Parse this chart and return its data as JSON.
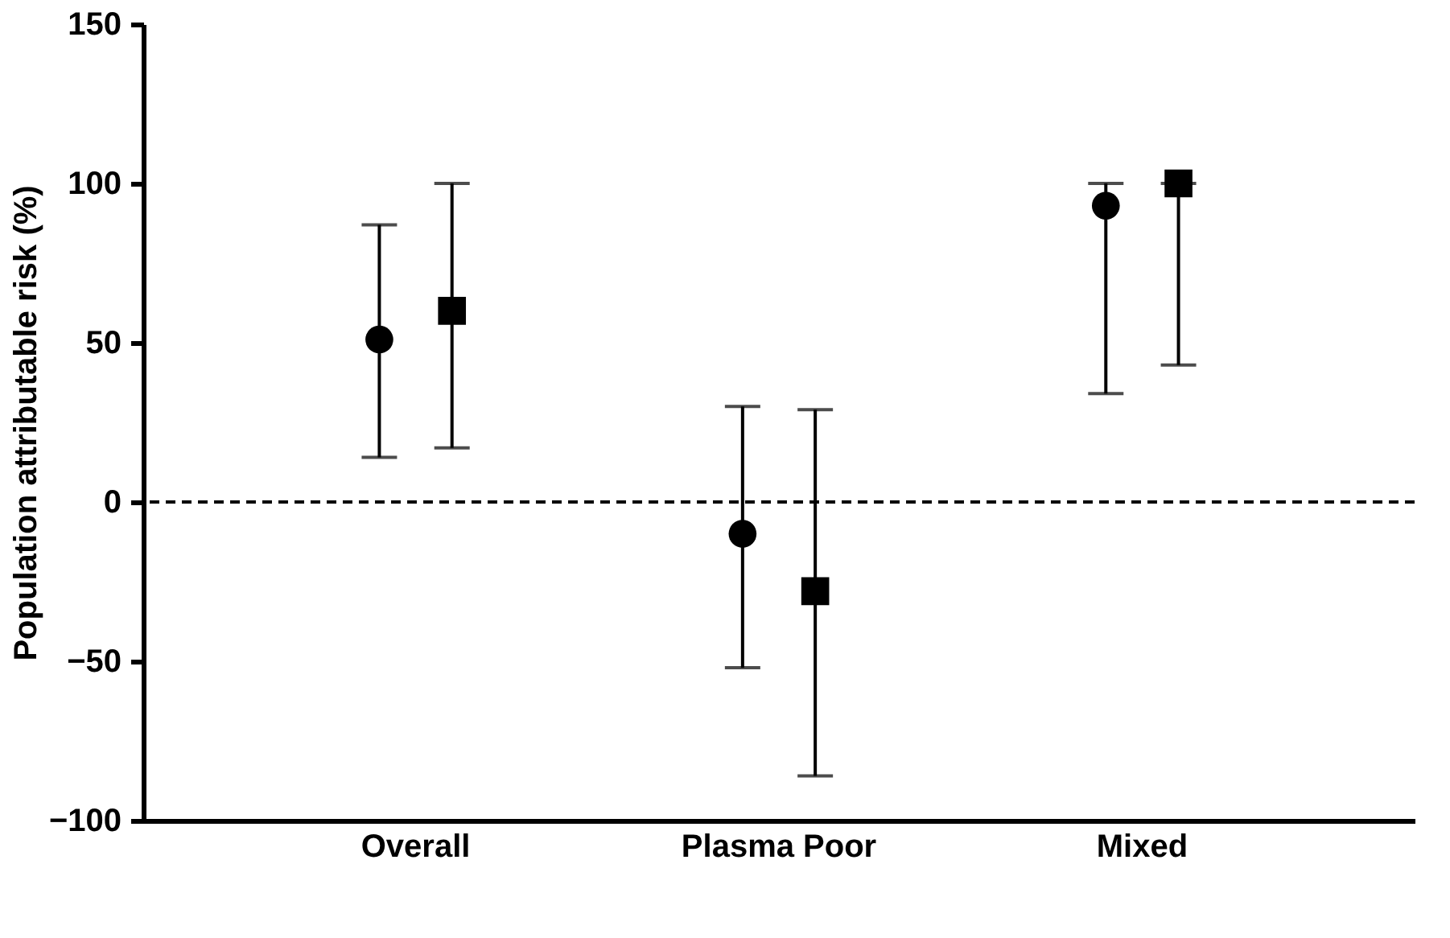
{
  "chart_data": {
    "type": "scatter",
    "ylabel": "Population attributable risk (%)",
    "categories": [
      "Overall",
      "Plasma Poor",
      "Mixed"
    ],
    "series": [
      {
        "color": "#000000",
        "marker": "circle",
        "values": [
          51,
          -10,
          93
        ],
        "errors": [
          [
            14,
            87
          ],
          [
            -52,
            30
          ],
          [
            34,
            100
          ]
        ]
      },
      {
        "color": "#000000",
        "marker": "square",
        "values": [
          60,
          -28,
          100
        ],
        "errors": [
          [
            17,
            100
          ],
          [
            -86,
            29
          ],
          [
            43,
            100
          ]
        ]
      }
    ],
    "ylim": [
      -100,
      150
    ],
    "yticks": [
      -100,
      -50,
      0,
      50,
      100,
      150
    ],
    "grid": false,
    "legend": false,
    "ref_lines": [
      {
        "axis": "y",
        "value": 0,
        "color": "#000000",
        "line_style": "dashed"
      }
    ]
  }
}
